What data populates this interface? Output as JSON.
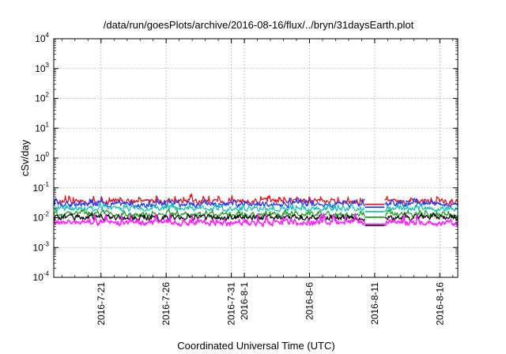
{
  "chart_data": {
    "type": "line",
    "title": "/data/run/goesPlots/archive/2016-08-16/flux/../bryn/31daysEarth.plot",
    "xlabel": "Coordinated Universal Time (UTC)",
    "ylabel": "cSv/day",
    "yscale": "log",
    "ylim": [
      0.0001,
      10000
    ],
    "xlim": [
      "2016-07-17T09:00",
      "2016-08-17T09:00"
    ],
    "grid": true,
    "y_ticks": [
      {
        "base": "10",
        "exp": "-4"
      },
      {
        "base": "10",
        "exp": "-3"
      },
      {
        "base": "10",
        "exp": "-2"
      },
      {
        "base": "10",
        "exp": "-1"
      },
      {
        "base": "10",
        "exp": "0"
      },
      {
        "base": "10",
        "exp": "1"
      },
      {
        "base": "10",
        "exp": "2"
      },
      {
        "base": "10",
        "exp": "3"
      },
      {
        "base": "10",
        "exp": "4"
      }
    ],
    "x_ticks": [
      "2016-7-21",
      "2016-7-26",
      "2016-7-31",
      "2016-8-1",
      "2016-8-6",
      "2016-8-11",
      "2016-8-16"
    ],
    "x_tick_dates": [
      "2016-07-21",
      "2016-07-26",
      "2016-07-31",
      "2016-08-01",
      "2016-08-06",
      "2016-08-11",
      "2016-08-16"
    ],
    "data_gap": [
      "2016-08-10T06:00",
      "2016-08-11T18:00"
    ],
    "series": [
      {
        "color": "#e8141e",
        "typical": 0.035,
        "peaks": 0.07
      },
      {
        "color": "#1e3cff",
        "typical": 0.028,
        "peaks": 0.05
      },
      {
        "color": "#16c4b4",
        "typical": 0.02,
        "peaks": 0.035
      },
      {
        "color": "#28a028",
        "typical": 0.013,
        "peaks": 0.02
      },
      {
        "color": "#111111",
        "typical": 0.01,
        "peaks": 0.015
      },
      {
        "color": "#ff1eff",
        "typical": 0.0075,
        "peaks": 0.02
      }
    ]
  }
}
